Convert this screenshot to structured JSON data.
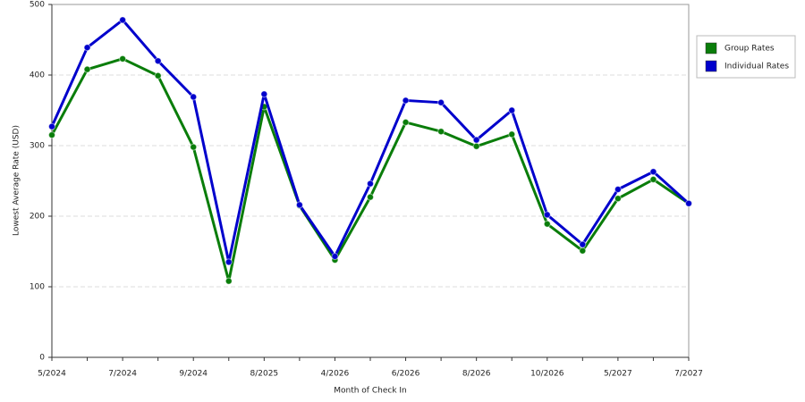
{
  "chart_data": {
    "type": "line",
    "x_label": "Month of Check In",
    "y_label": "Lowest Average Rate (USD)",
    "categories": [
      "5/2024",
      null,
      "7/2024",
      null,
      "9/2024",
      null,
      "8/2025",
      null,
      "4/2026",
      null,
      "6/2026",
      null,
      "8/2026",
      null,
      "10/2026",
      null,
      "5/2027",
      null,
      "7/2027"
    ],
    "series": [
      {
        "name": "Group Rates",
        "color": "#0a7d0a",
        "values": [
          315,
          408,
          423,
          399,
          298,
          108,
          355,
          215,
          138,
          227,
          333,
          320,
          299,
          316,
          189,
          151,
          225,
          252,
          218
        ]
      },
      {
        "name": "Individual Rates",
        "color": "#0000cc",
        "values": [
          327,
          439,
          478,
          420,
          369,
          135,
          373,
          216,
          143,
          246,
          364,
          361,
          308,
          350,
          202,
          160,
          238,
          263,
          218
        ]
      }
    ],
    "ylim": [
      0,
      500
    ],
    "yticks": [
      0,
      100,
      200,
      300,
      400,
      500
    ],
    "grid": true,
    "legend": "right"
  }
}
